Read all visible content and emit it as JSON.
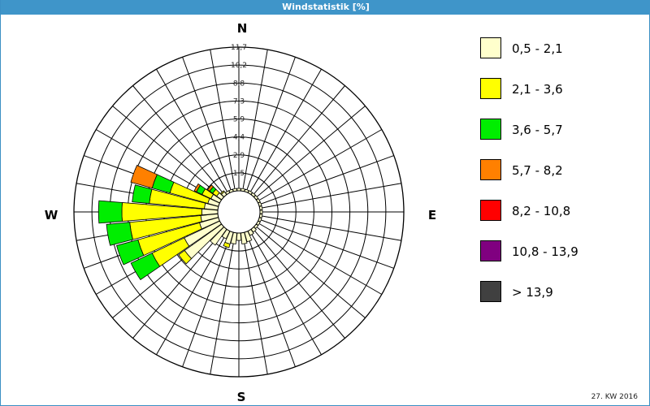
{
  "window": {
    "title": "Windstatistik [%]"
  },
  "footer": {
    "label": "27. KW 2016"
  },
  "chart_data": {
    "type": "wind-rose",
    "title": "Windstatistik [%]",
    "unit": "%",
    "compass_labels": {
      "N": "N",
      "E": "E",
      "S": "S",
      "W": "W"
    },
    "ring_labels": [
      "1,5",
      "2,9",
      "4,4",
      "5,9",
      "7,3",
      "8,8",
      "10,2",
      "11,7"
    ],
    "directions_deg": [
      0,
      10,
      20,
      30,
      40,
      50,
      60,
      70,
      80,
      90,
      100,
      110,
      120,
      130,
      140,
      150,
      160,
      170,
      180,
      190,
      200,
      210,
      220,
      230,
      240,
      250,
      260,
      270,
      280,
      290,
      300,
      310,
      320,
      330,
      340,
      350
    ],
    "classes": [
      {
        "label": "0,5 - 2,1",
        "color": "#ffffcc"
      },
      {
        "label": "2,1 - 3,6",
        "color": "#ffff00"
      },
      {
        "label": "3,6 - 5,7",
        "color": "#00ee00"
      },
      {
        "label": "5,7 - 8,2",
        "color": "#ff8000"
      },
      {
        "label": "8,2 - 10,8",
        "color": "#ff0000"
      },
      {
        "label": "10,8 - 13,9",
        "color": "#800080"
      },
      {
        "label": "> 13,9",
        "color": "#404040"
      }
    ],
    "cumulative_percent": [
      [
        0.2,
        0.2,
        0.2,
        0.2,
        0.2,
        0.2,
        0.2
      ],
      [
        0.2,
        0.2,
        0.2,
        0.2,
        0.2,
        0.2,
        0.2
      ],
      [
        0.2,
        0.2,
        0.2,
        0.2,
        0.2,
        0.2,
        0.2
      ],
      [
        0.2,
        0.2,
        0.2,
        0.2,
        0.2,
        0.2,
        0.2
      ],
      [
        0.2,
        0.2,
        0.2,
        0.2,
        0.2,
        0.2,
        0.2
      ],
      [
        0.2,
        0.2,
        0.2,
        0.2,
        0.2,
        0.2,
        0.2
      ],
      [
        0.2,
        0.2,
        0.2,
        0.2,
        0.2,
        0.2,
        0.2
      ],
      [
        0.2,
        0.2,
        0.2,
        0.2,
        0.2,
        0.2,
        0.2
      ],
      [
        0.2,
        0.2,
        0.2,
        0.2,
        0.2,
        0.2,
        0.2
      ],
      [
        0.2,
        0.2,
        0.2,
        0.2,
        0.2,
        0.2,
        0.2
      ],
      [
        0.2,
        0.2,
        0.2,
        0.2,
        0.2,
        0.2,
        0.2
      ],
      [
        0.2,
        0.2,
        0.2,
        0.2,
        0.2,
        0.2,
        0.2
      ],
      [
        0.2,
        0.2,
        0.2,
        0.2,
        0.2,
        0.2,
        0.2
      ],
      [
        0.2,
        0.2,
        0.2,
        0.2,
        0.2,
        0.2,
        0.2
      ],
      [
        0.3,
        0.3,
        0.3,
        0.3,
        0.3,
        0.3,
        0.3
      ],
      [
        0.4,
        0.4,
        0.4,
        0.4,
        0.4,
        0.4,
        0.4
      ],
      [
        0.8,
        0.8,
        0.8,
        0.8,
        0.8,
        0.8,
        0.8
      ],
      [
        0.9,
        0.9,
        0.9,
        0.9,
        0.9,
        0.9,
        0.9
      ],
      [
        0.6,
        0.6,
        0.6,
        0.6,
        0.6,
        0.6,
        0.6
      ],
      [
        0.9,
        0.9,
        0.9,
        0.9,
        0.9,
        0.9,
        0.9
      ],
      [
        1.0,
        1.3,
        1.3,
        1.3,
        1.3,
        1.3,
        1.3
      ],
      [
        0.7,
        0.7,
        0.7,
        0.7,
        0.7,
        0.7,
        0.7
      ],
      [
        1.6,
        1.6,
        1.6,
        1.6,
        1.6,
        1.6,
        1.6
      ],
      [
        3.7,
        4.3,
        4.3,
        4.3,
        4.3,
        4.3,
        4.3
      ],
      [
        3.2,
        6.1,
        8.0,
        8.0,
        8.0,
        8.0,
        8.0
      ],
      [
        1.6,
        6.8,
        8.6,
        8.6,
        8.6,
        8.6,
        8.6
      ],
      [
        1.4,
        7.2,
        9.1,
        9.1,
        9.1,
        9.1,
        9.1
      ],
      [
        1.3,
        7.8,
        9.7,
        9.7,
        9.7,
        9.7,
        9.7
      ],
      [
        1.1,
        5.6,
        7.0,
        7.0,
        7.0,
        7.0,
        7.0
      ],
      [
        0.9,
        4.1,
        5.6,
        7.4,
        7.4,
        7.4,
        7.4
      ],
      [
        0.8,
        1.6,
        2.1,
        2.3,
        2.3,
        2.3,
        2.3
      ],
      [
        0.5,
        0.9,
        1.2,
        1.4,
        1.4,
        1.4,
        1.4
      ],
      [
        0.3,
        0.4,
        0.4,
        0.4,
        0.4,
        0.4,
        0.4
      ],
      [
        0.2,
        0.2,
        0.2,
        0.2,
        0.2,
        0.2,
        0.2
      ],
      [
        0.2,
        0.2,
        0.2,
        0.2,
        0.2,
        0.2,
        0.2
      ],
      [
        0.2,
        0.2,
        0.2,
        0.2,
        0.2,
        0.2,
        0.2
      ]
    ],
    "r_max": 11.7,
    "grid": true,
    "legend_position": "right"
  }
}
